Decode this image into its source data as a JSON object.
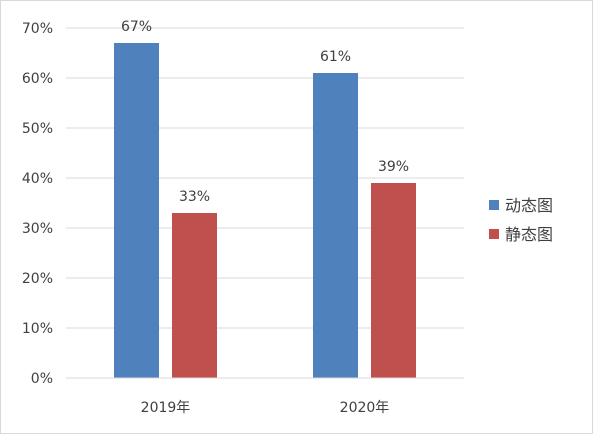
{
  "chart_data": {
    "type": "bar",
    "categories": [
      "2019年",
      "2020年"
    ],
    "series": [
      {
        "name": "动态图",
        "values": [
          67,
          61
        ],
        "labels": [
          "67%",
          "61%"
        ],
        "color": "#4F81BD"
      },
      {
        "name": "静态图",
        "values": [
          33,
          39
        ],
        "labels": [
          "33%",
          "39%"
        ],
        "color": "#C0504D"
      }
    ],
    "ylim": [
      0,
      70
    ],
    "yticks": [
      0,
      10,
      20,
      30,
      40,
      50,
      60,
      70
    ],
    "ytick_labels": [
      "0%",
      "10%",
      "20%",
      "30%",
      "40%",
      "50%",
      "60%",
      "70%"
    ],
    "grid": true,
    "legend_position": "right",
    "title": "",
    "xlabel": "",
    "ylabel": ""
  }
}
